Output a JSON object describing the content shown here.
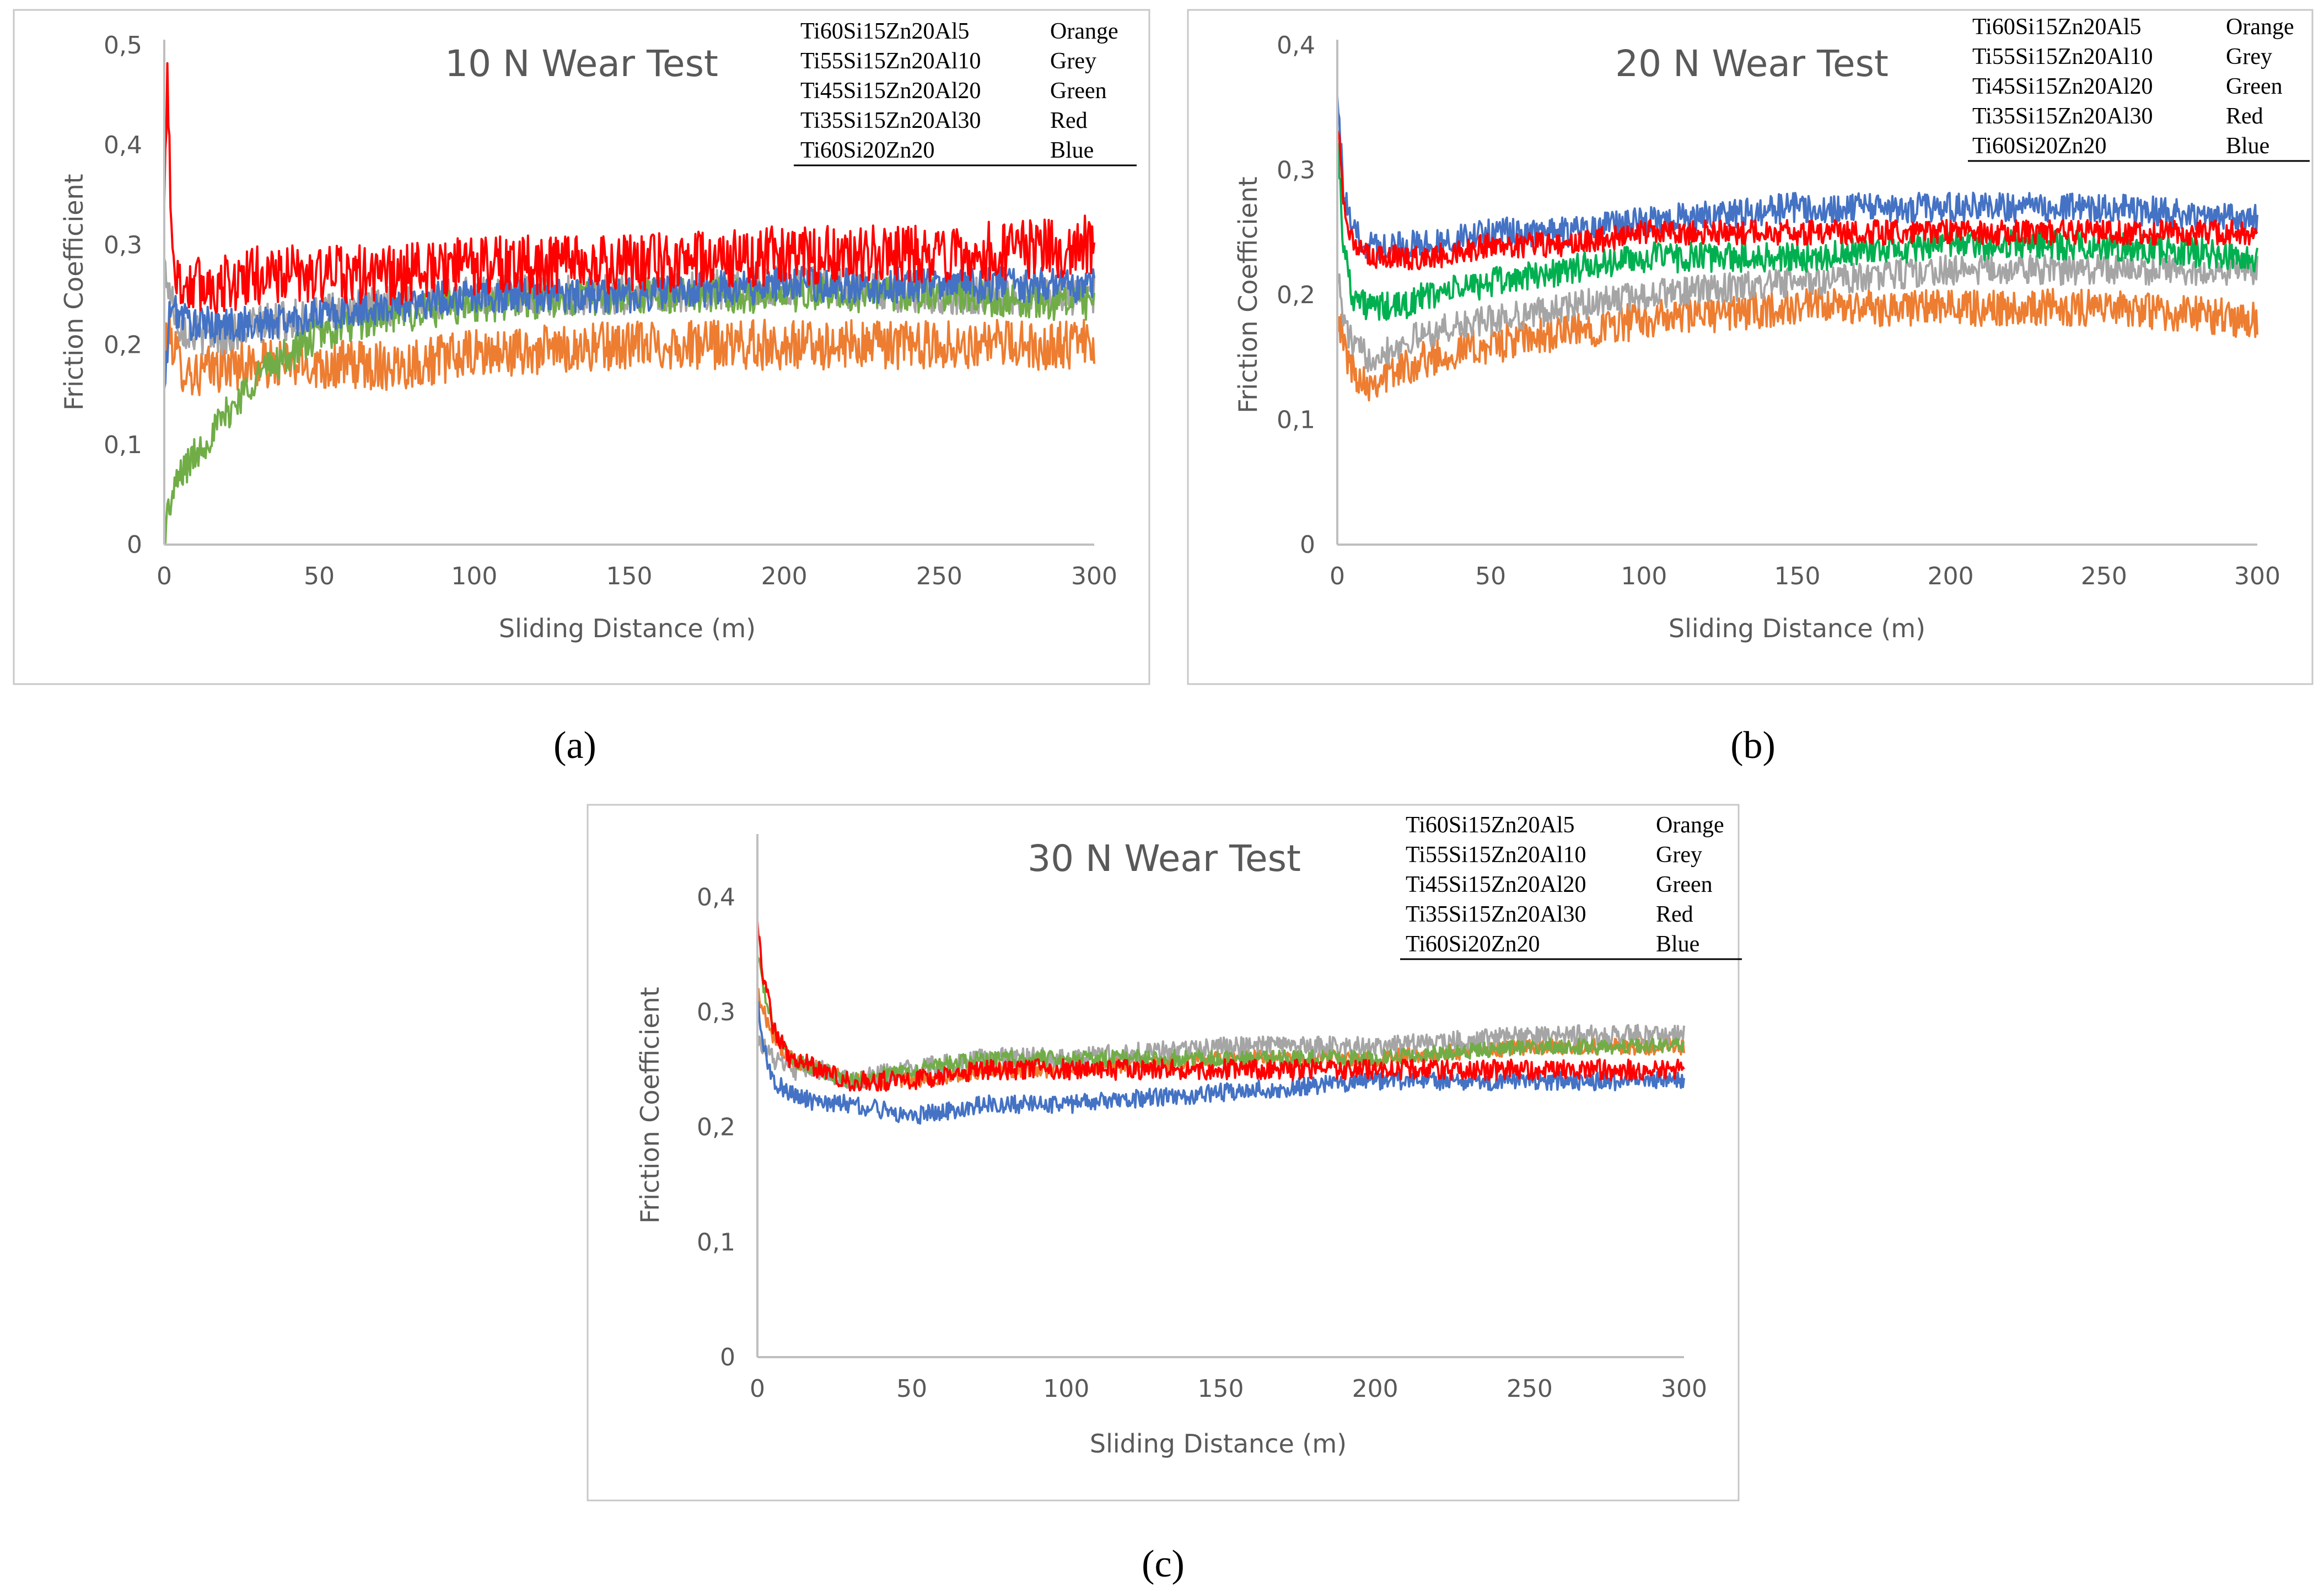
{
  "figure": {
    "captions": [
      "(a)",
      "(b)",
      "(c)"
    ]
  },
  "chart_data": [
    {
      "type": "line",
      "title": "10 N Wear Test",
      "xlabel": "Sliding Distance (m)",
      "ylabel": "Friction Coefficient",
      "xlim": [
        0,
        300
      ],
      "ylim": [
        0,
        0.5
      ],
      "xticks": [
        "0",
        "50",
        "100",
        "150",
        "200",
        "250",
        "300"
      ],
      "yticks": [
        "0",
        "0,1",
        "0,2",
        "0,3",
        "0,4",
        "0,5"
      ],
      "legend": [
        {
          "name": "Ti60Si15Zn20Al5",
          "color_name": "Orange"
        },
        {
          "name": "Ti55Si15Zn20Al10",
          "color_name": "Grey"
        },
        {
          "name": "Ti45Si15Zn20Al20",
          "color_name": "Green"
        },
        {
          "name": "Ti35Si15Zn20Al30",
          "color_name": "Red"
        },
        {
          "name": "Ti60Si20Zn20",
          "color_name": "Blue"
        }
      ],
      "series": [
        {
          "name": "Ti60Si15Zn20Al5",
          "color": "#ed7d31",
          "x": [
            0,
            2,
            5,
            10,
            20,
            30,
            50,
            75,
            100,
            150,
            200,
            250,
            300
          ],
          "y": [
            0.2,
            0.21,
            0.18,
            0.17,
            0.18,
            0.18,
            0.18,
            0.18,
            0.19,
            0.2,
            0.2,
            0.2,
            0.2
          ],
          "noise": 0.025
        },
        {
          "name": "Ti55Si15Zn20Al10",
          "color": "#a5a5a5",
          "x": [
            0,
            2,
            5,
            10,
            20,
            30,
            50,
            75,
            100,
            150,
            200,
            250,
            300
          ],
          "y": [
            0.28,
            0.25,
            0.22,
            0.21,
            0.21,
            0.22,
            0.23,
            0.24,
            0.25,
            0.25,
            0.26,
            0.25,
            0.25
          ],
          "noise": 0.02
        },
        {
          "name": "Ti45Si15Zn20Al20",
          "color": "#70ad47",
          "x": [
            0,
            1,
            3,
            5,
            10,
            15,
            20,
            25,
            30,
            35,
            40,
            50,
            60,
            75,
            100,
            150,
            200,
            250,
            300
          ],
          "y": [
            0.01,
            0.03,
            0.05,
            0.07,
            0.09,
            0.11,
            0.13,
            0.15,
            0.17,
            0.18,
            0.19,
            0.21,
            0.22,
            0.23,
            0.24,
            0.25,
            0.25,
            0.25,
            0.24
          ],
          "noise": 0.018
        },
        {
          "name": "Ti60Si20Zn20",
          "color": "#4472c4",
          "x": [
            0,
            2,
            5,
            10,
            20,
            30,
            50,
            75,
            100,
            150,
            200,
            250,
            300
          ],
          "y": [
            0.15,
            0.24,
            0.23,
            0.22,
            0.22,
            0.22,
            0.23,
            0.24,
            0.25,
            0.25,
            0.26,
            0.26,
            0.26
          ],
          "noise": 0.018
        },
        {
          "name": "Ti35Si15Zn20Al30",
          "color": "#ff0000",
          "x": [
            0,
            1,
            2,
            3,
            5,
            10,
            20,
            30,
            50,
            75,
            100,
            150,
            200,
            250,
            300
          ],
          "y": [
            0.33,
            0.48,
            0.36,
            0.28,
            0.26,
            0.26,
            0.26,
            0.27,
            0.27,
            0.27,
            0.28,
            0.28,
            0.29,
            0.29,
            0.3
          ],
          "noise": 0.03
        }
      ]
    },
    {
      "type": "line",
      "title": "20 N Wear Test",
      "xlabel": "Sliding Distance (m)",
      "ylabel": "Friction Coefficient",
      "xlim": [
        0,
        300
      ],
      "ylim": [
        0,
        0.4
      ],
      "xticks": [
        "0",
        "50",
        "100",
        "150",
        "200",
        "250",
        "300"
      ],
      "yticks": [
        "0",
        "0,1",
        "0,2",
        "0,3",
        "0,4"
      ],
      "legend": [
        {
          "name": "Ti60Si15Zn20Al5",
          "color_name": "Orange"
        },
        {
          "name": "Ti55Si15Zn20Al10",
          "color_name": "Grey"
        },
        {
          "name": "Ti45Si15Zn20Al20",
          "color_name": "Green"
        },
        {
          "name": "Ti35Si15Zn20Al30",
          "color_name": "Red"
        },
        {
          "name": "Ti60Si20Zn20",
          "color_name": "Blue"
        }
      ],
      "series": [
        {
          "name": "Ti60Si15Zn20Al5",
          "color": "#ed7d31",
          "x": [
            0,
            2,
            5,
            10,
            20,
            30,
            50,
            75,
            100,
            150,
            200,
            250,
            300
          ],
          "y": [
            0.19,
            0.16,
            0.14,
            0.13,
            0.14,
            0.15,
            0.16,
            0.17,
            0.18,
            0.19,
            0.19,
            0.19,
            0.18
          ],
          "noise": 0.015
        },
        {
          "name": "Ti55Si15Zn20Al10",
          "color": "#a5a5a5",
          "x": [
            0,
            2,
            5,
            10,
            20,
            30,
            50,
            75,
            100,
            150,
            200,
            250,
            300
          ],
          "y": [
            0.22,
            0.18,
            0.16,
            0.15,
            0.16,
            0.17,
            0.18,
            0.19,
            0.2,
            0.21,
            0.22,
            0.22,
            0.22
          ],
          "noise": 0.012
        },
        {
          "name": "Ti45Si15Zn20Al20",
          "color": "#00b050",
          "x": [
            0,
            2,
            5,
            10,
            20,
            30,
            50,
            75,
            100,
            150,
            200,
            250,
            300
          ],
          "y": [
            0.33,
            0.24,
            0.2,
            0.19,
            0.19,
            0.2,
            0.21,
            0.22,
            0.23,
            0.23,
            0.24,
            0.24,
            0.23
          ],
          "noise": 0.012
        },
        {
          "name": "Ti60Si20Zn20",
          "color": "#4472c4",
          "x": [
            0,
            2,
            5,
            10,
            20,
            30,
            50,
            75,
            100,
            150,
            200,
            250,
            300
          ],
          "y": [
            0.37,
            0.28,
            0.25,
            0.24,
            0.24,
            0.24,
            0.25,
            0.25,
            0.26,
            0.27,
            0.27,
            0.27,
            0.26
          ],
          "noise": 0.012
        },
        {
          "name": "Ti35Si15Zn20Al30",
          "color": "#ff0000",
          "x": [
            0,
            2,
            5,
            10,
            20,
            30,
            50,
            75,
            100,
            150,
            200,
            250,
            300
          ],
          "y": [
            0.34,
            0.28,
            0.24,
            0.23,
            0.23,
            0.23,
            0.24,
            0.24,
            0.25,
            0.25,
            0.25,
            0.25,
            0.25
          ],
          "noise": 0.01
        }
      ]
    },
    {
      "type": "line",
      "title": "30 N Wear Test",
      "xlabel": "Sliding Distance (m)",
      "ylabel": "Friction Coefficient",
      "xlim": [
        0,
        300
      ],
      "ylim": [
        0,
        0.45
      ],
      "xticks": [
        "0",
        "50",
        "100",
        "150",
        "200",
        "250",
        "300"
      ],
      "yticks": [
        "0",
        "0,1",
        "0,2",
        "0,3",
        "0,4"
      ],
      "legend": [
        {
          "name": "Ti60Si15Zn20Al5",
          "color_name": "Orange"
        },
        {
          "name": "Ti55Si15Zn20Al10",
          "color_name": "Grey"
        },
        {
          "name": "Ti45Si15Zn20Al20",
          "color_name": "Green"
        },
        {
          "name": "Ti35Si15Zn20Al30",
          "color_name": "Red"
        },
        {
          "name": "Ti60Si20Zn20",
          "color_name": "Blue"
        }
      ],
      "series": [
        {
          "name": "Ti60Si15Zn20Al5",
          "color": "#ed7d31",
          "x": [
            0,
            2,
            5,
            10,
            20,
            30,
            50,
            75,
            100,
            150,
            200,
            250,
            300
          ],
          "y": [
            0.32,
            0.3,
            0.28,
            0.26,
            0.25,
            0.24,
            0.24,
            0.25,
            0.25,
            0.26,
            0.26,
            0.27,
            0.27
          ],
          "noise": 0.007
        },
        {
          "name": "Ti55Si15Zn20Al10",
          "color": "#a5a5a5",
          "x": [
            0,
            2,
            5,
            10,
            20,
            30,
            50,
            75,
            100,
            150,
            200,
            250,
            300
          ],
          "y": [
            0.28,
            0.27,
            0.26,
            0.25,
            0.25,
            0.24,
            0.25,
            0.26,
            0.26,
            0.27,
            0.27,
            0.28,
            0.28
          ],
          "noise": 0.009
        },
        {
          "name": "Ti45Si15Zn20Al20",
          "color": "#70ad47",
          "x": [
            0,
            2,
            5,
            10,
            20,
            30,
            50,
            75,
            100,
            150,
            200,
            250,
            300
          ],
          "y": [
            0.35,
            0.32,
            0.29,
            0.26,
            0.25,
            0.24,
            0.25,
            0.26,
            0.26,
            0.26,
            0.26,
            0.27,
            0.27
          ],
          "noise": 0.007
        },
        {
          "name": "Ti60Si20Zn20",
          "color": "#4472c4",
          "x": [
            0,
            2,
            5,
            10,
            20,
            30,
            50,
            75,
            100,
            150,
            200,
            250,
            300
          ],
          "y": [
            0.31,
            0.27,
            0.24,
            0.23,
            0.22,
            0.22,
            0.21,
            0.22,
            0.22,
            0.23,
            0.24,
            0.24,
            0.24
          ],
          "noise": 0.008
        },
        {
          "name": "Ti35Si15Zn20Al30",
          "color": "#ff0000",
          "x": [
            0,
            2,
            5,
            10,
            20,
            30,
            50,
            75,
            100,
            150,
            200,
            250,
            300
          ],
          "y": [
            0.38,
            0.33,
            0.29,
            0.26,
            0.25,
            0.24,
            0.24,
            0.25,
            0.25,
            0.25,
            0.25,
            0.25,
            0.25
          ],
          "noise": 0.009
        }
      ]
    }
  ]
}
